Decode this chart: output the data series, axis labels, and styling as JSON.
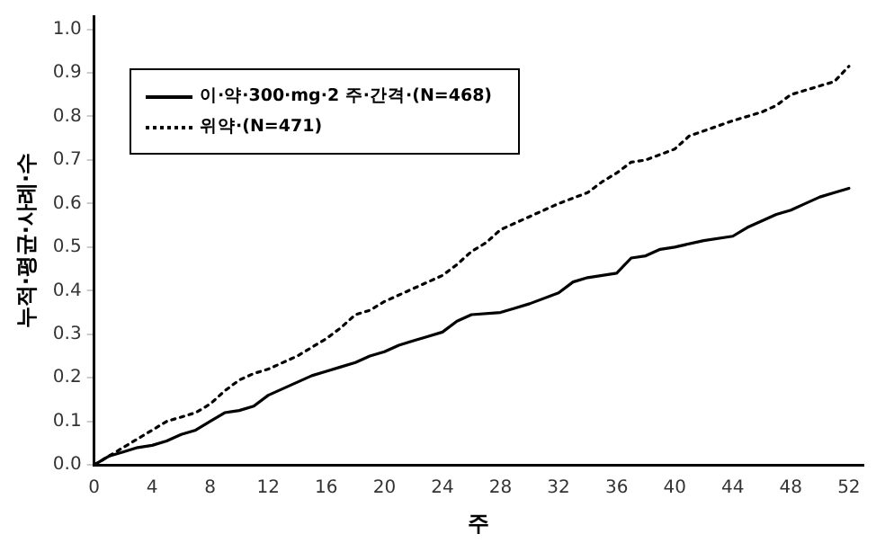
{
  "chart_data": {
    "type": "line",
    "xlabel": "주",
    "ylabel": "누적·평균·사례·수",
    "xlim": [
      0,
      53
    ],
    "xticks": [
      0,
      4,
      8,
      12,
      16,
      20,
      24,
      28,
      32,
      36,
      40,
      44,
      48,
      52
    ],
    "ylim": [
      0,
      1.03
    ],
    "yticks": [
      {
        "value": 0,
        "label": "0.0"
      },
      0.1,
      0.2,
      0.3,
      0.4,
      0.5,
      0.6,
      0.7,
      0.8,
      0.9,
      {
        "value": 1,
        "label": "1.0"
      }
    ],
    "grid": false,
    "legend": "top left",
    "marker": "none",
    "series": [
      {
        "name": "이·약·300·mg·2 주·간격·(N=468)",
        "color": "#000000",
        "line_style": "solid",
        "x": [
          0,
          1,
          2,
          3,
          4,
          5,
          6,
          7,
          8,
          9,
          10,
          11,
          12,
          13,
          14,
          15,
          16,
          17,
          18,
          19,
          20,
          21,
          22,
          23,
          24,
          25,
          26,
          28,
          29,
          30,
          32,
          33,
          34,
          35,
          36,
          37,
          38,
          39,
          40,
          42,
          44,
          45,
          46,
          47,
          48,
          49,
          50,
          51,
          52
        ],
        "values": [
          0,
          0.02,
          0.03,
          0.04,
          0.045,
          0.055,
          0.07,
          0.08,
          0.1,
          0.12,
          0.125,
          0.135,
          0.16,
          0.175,
          0.19,
          0.205,
          0.215,
          0.225,
          0.235,
          0.25,
          0.26,
          0.275,
          0.285,
          0.295,
          0.305,
          0.33,
          0.345,
          0.35,
          0.36,
          0.37,
          0.395,
          0.42,
          0.43,
          0.435,
          0.44,
          0.475,
          0.48,
          0.495,
          0.5,
          0.515,
          0.525,
          0.545,
          0.56,
          0.575,
          0.585,
          0.6,
          0.615,
          0.625,
          0.635
        ]
      },
      {
        "name": "위약·(N=471)",
        "color": "#000000",
        "line_style": "dotted",
        "x": [
          0,
          2,
          3,
          4,
          5,
          7,
          8,
          9,
          10,
          11,
          12,
          14,
          16,
          17,
          18,
          19,
          20,
          22,
          24,
          25,
          26,
          27,
          28,
          30,
          32,
          34,
          35,
          36,
          37,
          38,
          40,
          41,
          44,
          46,
          47,
          48,
          50,
          51,
          52
        ],
        "values": [
          0,
          0.04,
          0.06,
          0.08,
          0.1,
          0.12,
          0.14,
          0.17,
          0.195,
          0.21,
          0.22,
          0.25,
          0.29,
          0.315,
          0.345,
          0.355,
          0.375,
          0.405,
          0.435,
          0.46,
          0.49,
          0.51,
          0.54,
          0.57,
          0.6,
          0.625,
          0.65,
          0.67,
          0.695,
          0.7,
          0.725,
          0.755,
          0.79,
          0.81,
          0.825,
          0.85,
          0.87,
          0.88,
          0.915
        ]
      }
    ]
  }
}
